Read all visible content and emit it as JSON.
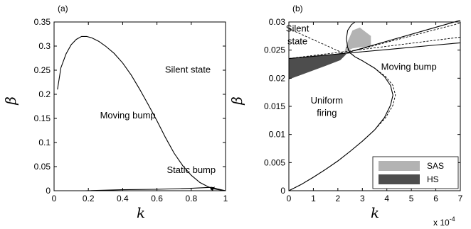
{
  "chart_data": [
    {
      "type": "line",
      "panel_label": "(a)",
      "xlabel": "k",
      "ylabel": "β",
      "xlim": [
        0,
        1
      ],
      "ylim": [
        0,
        0.35
      ],
      "xticks": [
        "0",
        "0.2",
        "0.4",
        "0.6",
        "0.8",
        "1"
      ],
      "yticks": [
        "0",
        "0.05",
        "0.1",
        "0.15",
        "0.2",
        "0.25",
        "0.3",
        "0.35"
      ],
      "grid": false,
      "annotations": [
        {
          "text": "Silent state",
          "x": 0.78,
          "y": 0.245
        },
        {
          "text": "Moving bump",
          "x": 0.43,
          "y": 0.15
        },
        {
          "text": "Static bump",
          "x": 0.8,
          "y": 0.037
        }
      ],
      "series": [
        {
          "style": "solid",
          "x": [
            0.02,
            0.04,
            0.07,
            0.1,
            0.13,
            0.16,
            0.19,
            0.22,
            0.26,
            0.3,
            0.35,
            0.4,
            0.45,
            0.5,
            0.55,
            0.6,
            0.65,
            0.7,
            0.75,
            0.8,
            0.85,
            0.9,
            0.93,
            0.96,
            1.0
          ],
          "y": [
            0.21,
            0.255,
            0.284,
            0.303,
            0.314,
            0.32,
            0.32,
            0.317,
            0.31,
            0.3,
            0.285,
            0.265,
            0.24,
            0.21,
            0.178,
            0.145,
            0.11,
            0.078,
            0.052,
            0.032,
            0.017,
            0.008,
            0.004,
            0.002,
            0.0
          ]
        },
        {
          "style": "solid",
          "x": [
            0.18,
            0.4,
            0.6,
            0.8,
            0.92,
            0.95,
            1.0
          ],
          "y": [
            0.0,
            0.002,
            0.003,
            0.005,
            0.007,
            0.004,
            0.0
          ]
        }
      ]
    },
    {
      "type": "line",
      "panel_label": "(b)",
      "xlabel": "k",
      "ylabel": "β",
      "xlim": [
        0,
        7
      ],
      "ylim": [
        0,
        0.03
      ],
      "xticks": [
        "0",
        "1",
        "2",
        "3",
        "4",
        "5",
        "6",
        "7"
      ],
      "yticks": [
        "0",
        "0.005",
        "0.01",
        "0.015",
        "0.02",
        "0.025",
        "0.03"
      ],
      "x_multiplier": "x 10",
      "x_multiplier_exp": "-4",
      "grid": false,
      "annotations": [
        {
          "text": "Silent",
          "x": 0.35,
          "y": 0.0283
        },
        {
          "text": "state",
          "x": 0.35,
          "y": 0.026
        },
        {
          "text": "Moving bump",
          "x": 4.9,
          "y": 0.0215
        },
        {
          "text": "Uniform",
          "x": 1.55,
          "y": 0.0155
        },
        {
          "text": "firing",
          "x": 1.55,
          "y": 0.0133
        }
      ],
      "legend": {
        "placement": "bottom-right",
        "entries": [
          {
            "label": "SAS",
            "color": "#b3b3b3"
          },
          {
            "label": "HS",
            "color": "#4d4d4d"
          }
        ]
      },
      "regions": [
        {
          "label": "SAS",
          "color": "#b3b3b3",
          "x": [
            2.25,
            2.4,
            2.6,
            2.9,
            3.35,
            3.35,
            2.9,
            2.6,
            2.4,
            2.25
          ],
          "y": [
            0.0244,
            0.0265,
            0.0285,
            0.029,
            0.0275,
            0.0257,
            0.0255,
            0.0253,
            0.0249,
            0.0244
          ]
        },
        {
          "label": "HS",
          "color": "#4d4d4d",
          "x": [
            0.0,
            0.5,
            1.0,
            1.5,
            1.9,
            2.15,
            2.35,
            2.1,
            1.5,
            1.0,
            0.5,
            0.0
          ],
          "y": [
            0.0235,
            0.0237,
            0.0239,
            0.0241,
            0.0243,
            0.0245,
            0.0243,
            0.0232,
            0.0222,
            0.0214,
            0.0206,
            0.0198
          ]
        }
      ],
      "series": [
        {
          "style": "solid",
          "x": [
            0.0,
            0.5,
            1.0,
            1.5,
            2.0,
            2.5,
            3.0,
            3.5,
            3.9,
            4.15,
            4.25,
            4.15,
            3.9,
            3.5,
            3.0,
            2.7,
            2.5,
            2.4,
            2.35,
            2.4,
            2.55,
            2.7
          ],
          "y": [
            0.0,
            0.0011,
            0.0024,
            0.0038,
            0.0053,
            0.007,
            0.0088,
            0.0108,
            0.013,
            0.0152,
            0.017,
            0.0187,
            0.0203,
            0.0218,
            0.0231,
            0.0238,
            0.0245,
            0.0255,
            0.027,
            0.0285,
            0.0295,
            0.03
          ]
        },
        {
          "style": "dashed",
          "x": [
            0.0,
            0.5,
            1.0,
            1.5,
            2.0,
            2.5,
            3.0,
            3.5,
            3.95,
            4.25,
            4.35,
            4.25,
            3.95,
            3.5,
            3.0,
            2.7,
            2.5,
            2.35
          ],
          "y": [
            0.0,
            0.0011,
            0.0024,
            0.0038,
            0.0053,
            0.007,
            0.0088,
            0.0108,
            0.013,
            0.0152,
            0.017,
            0.0187,
            0.0203,
            0.0218,
            0.0231,
            0.0238,
            0.0245,
            0.0255
          ]
        },
        {
          "style": "dashed",
          "x": [
            0.0,
            7.0
          ],
          "y": [
            0.0235,
            0.0273
          ]
        },
        {
          "style": "dashed",
          "x": [
            0.0,
            2.25,
            7.0
          ],
          "y": [
            0.0288,
            0.0244,
            0.0298
          ]
        },
        {
          "style": "solid",
          "x": [
            2.25,
            7.0
          ],
          "y": [
            0.0244,
            0.0303
          ]
        },
        {
          "style": "solid",
          "x": [
            0.0,
            1.0,
            2.0,
            3.0,
            4.0,
            5.0,
            6.0,
            7.0
          ],
          "y": [
            0.0235,
            0.0239,
            0.0243,
            0.0247,
            0.0251,
            0.0255,
            0.0259,
            0.0263
          ]
        }
      ]
    }
  ]
}
